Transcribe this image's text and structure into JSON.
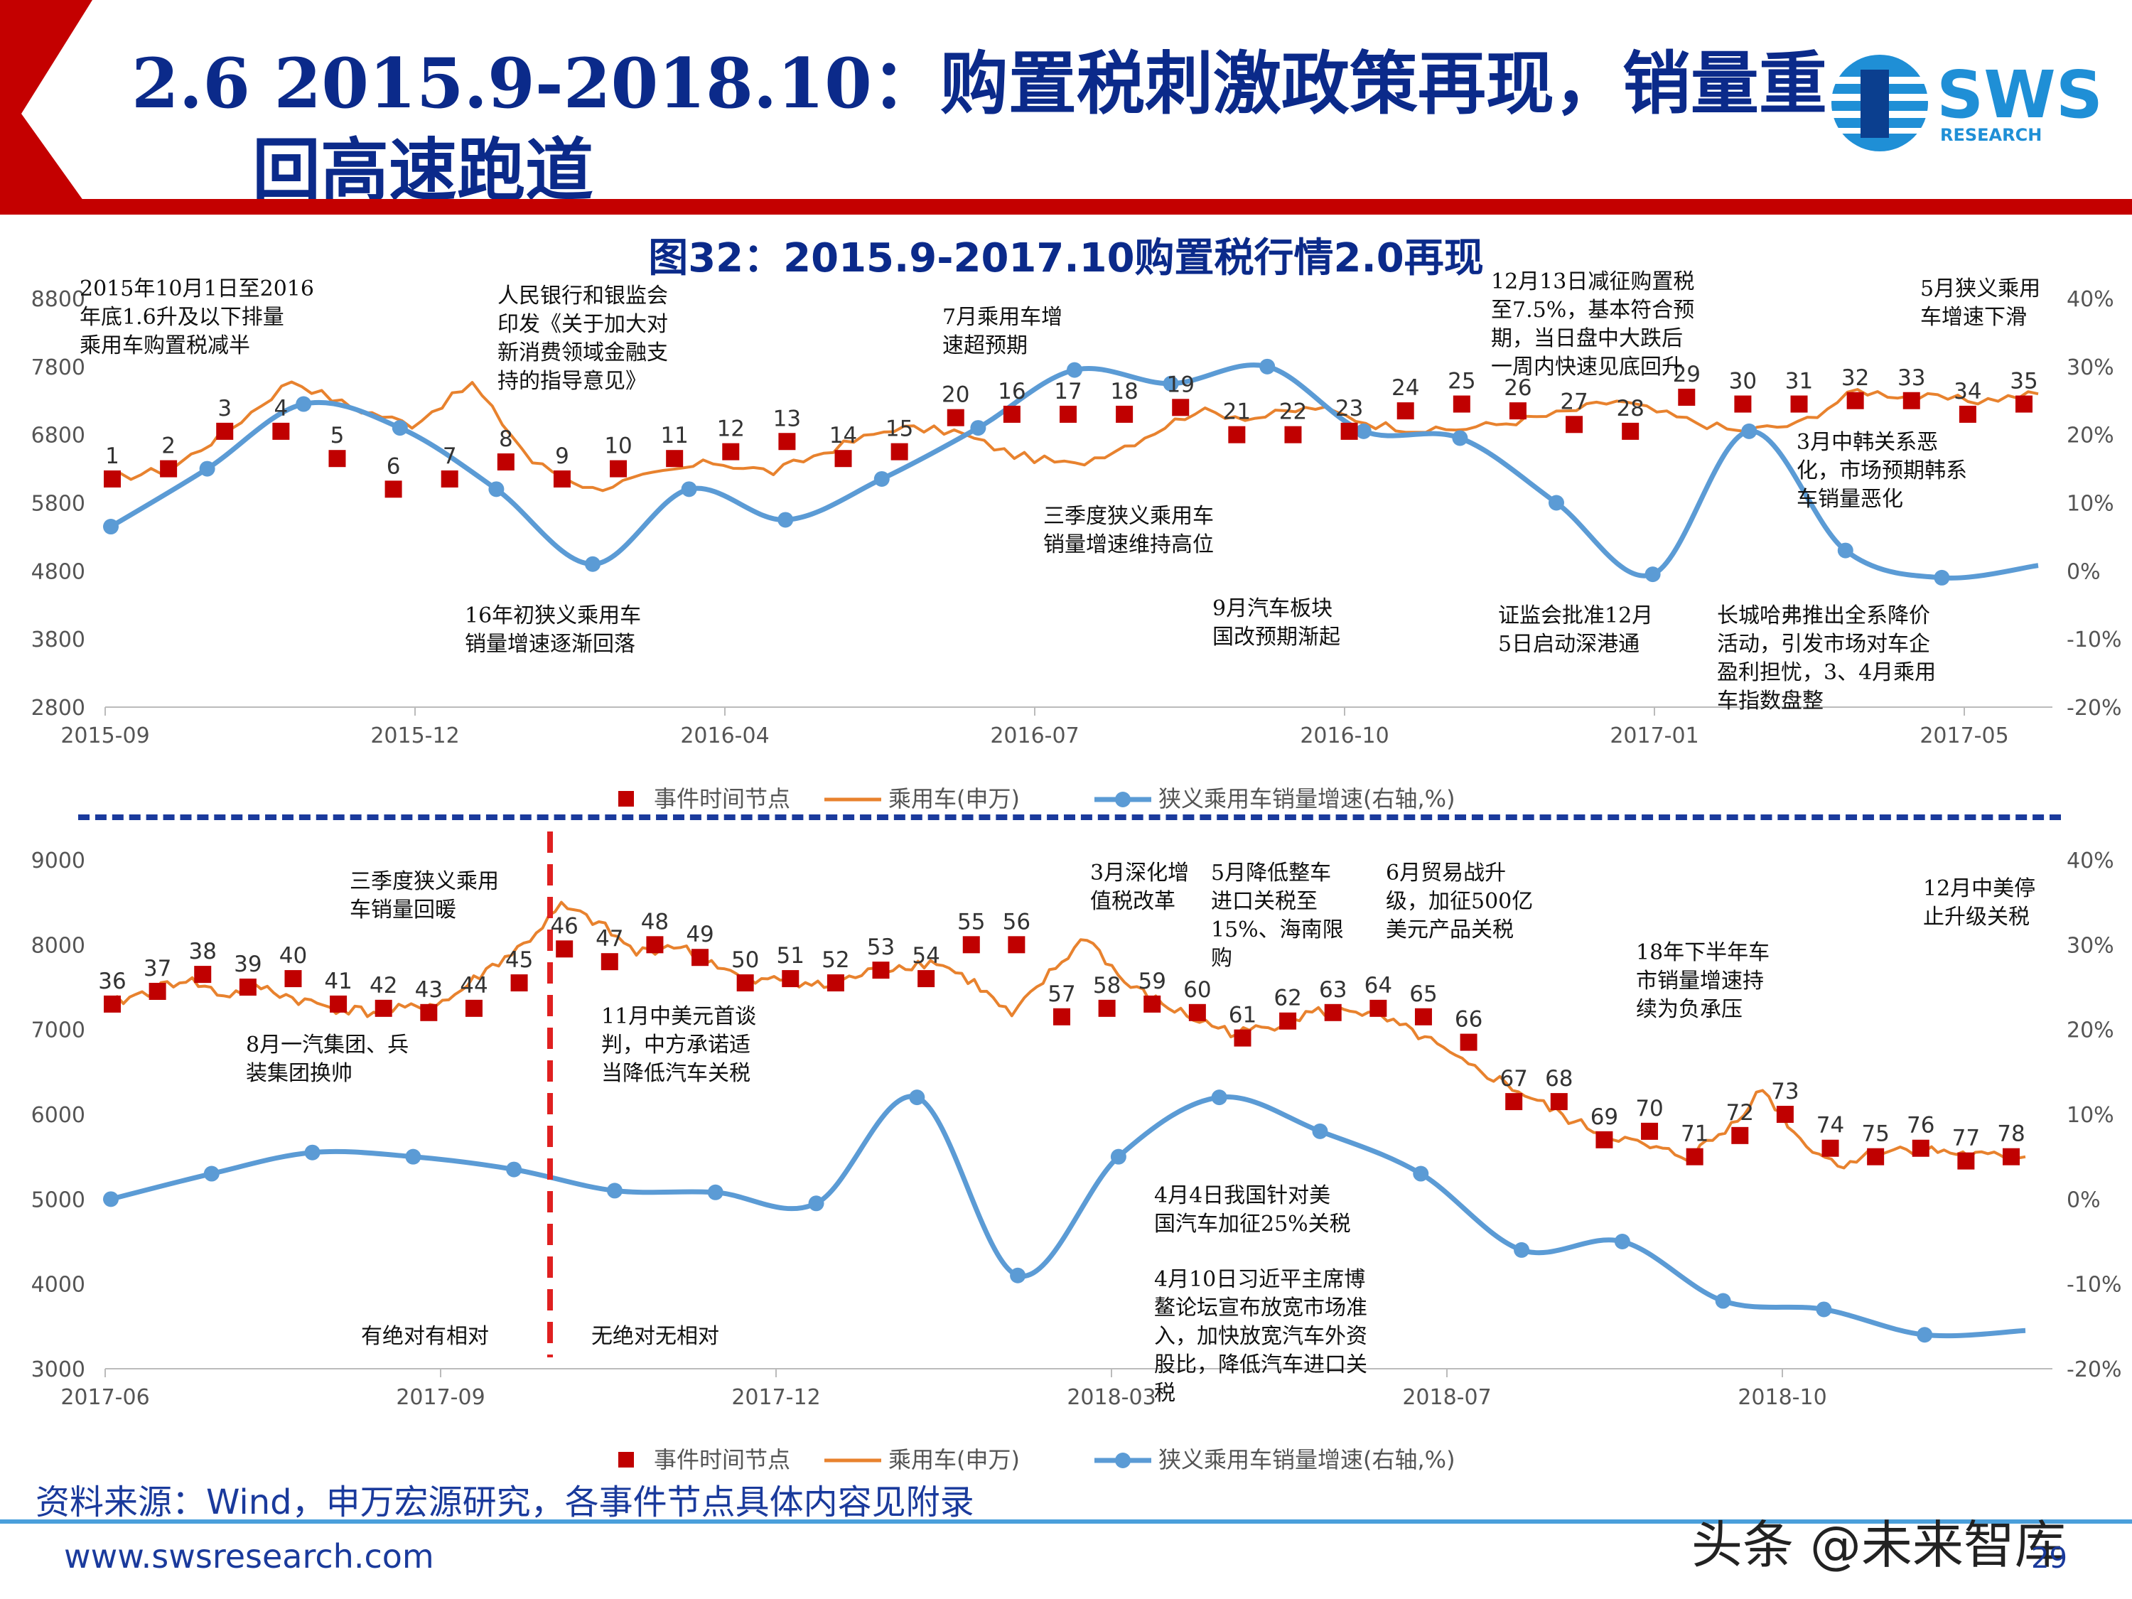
{
  "slide": {
    "title_line1": "2.6 2015.9-2018.10：购置税刺激政策再现，销量重",
    "title_line2": "回高速跑道",
    "figure_title": "图32：2015.9-2017.10购置税行情2.0再现",
    "logo_text": "SWS",
    "logo_sub": "RESEARCH",
    "source": "资料来源：Wind，申万宏源研究，各事件节点具体内容见附录",
    "website": "www.swsresearch.com",
    "watermark": "头条 @未来智库",
    "page": "29"
  },
  "colors": {
    "navy": "#0b2a8a",
    "red": "#c40000",
    "event": "#c00000",
    "orange": "#e8822e",
    "blue": "#5b9bd5"
  },
  "chart_data": [
    {
      "type": "line",
      "legend": [
        "事件时间节点",
        "乘用车(申万)",
        "狭义乘用车销量增速(右轴,%)"
      ],
      "x_ticks": [
        "2015-09",
        "2015-12",
        "2016-04",
        "2016-07",
        "2016-10",
        "2017-01",
        "2017-05"
      ],
      "y_left": {
        "range": [
          2800,
          8800
        ],
        "ticks": [
          "8800",
          "7800",
          "6800",
          "5800",
          "4800",
          "3800",
          "2800"
        ]
      },
      "y_right": {
        "range": [
          -20,
          40
        ],
        "ticks": [
          "40%",
          "30%",
          "20%",
          "10%",
          "0%",
          "-10%",
          "-20%"
        ]
      },
      "series": [
        {
          "name": "乘用车(申万)",
          "axis": "left",
          "values": [
            6150,
            6300,
            6900,
            7600,
            7200,
            6950,
            7550,
            6400,
            6000,
            6200,
            6400,
            6250,
            6600,
            6900,
            6850,
            6500,
            6350,
            6700,
            7150,
            7050,
            7200,
            6950,
            6850,
            6950,
            7100,
            7300,
            7050,
            6850,
            6950,
            7450,
            7350,
            7300,
            7400
          ]
        },
        {
          "name": "狭义乘用车销量增速(右轴,%)",
          "axis": "right",
          "values": [
            6.5,
            15,
            24.5,
            21,
            12,
            1,
            12,
            7.5,
            13.5,
            21,
            29.5,
            27.5,
            30,
            20.5,
            19.5,
            10,
            -0.5,
            20.5,
            3,
            -1,
            0.8
          ]
        }
      ],
      "events": [
        {
          "n": "1",
          "v": 6150
        },
        {
          "n": "2",
          "v": 6300
        },
        {
          "n": "3",
          "v": 6850
        },
        {
          "n": "4",
          "v": 6850
        },
        {
          "n": "5",
          "v": 6450
        },
        {
          "n": "6",
          "v": 6000
        },
        {
          "n": "7",
          "v": 6150
        },
        {
          "n": "8",
          "v": 6400
        },
        {
          "n": "9",
          "v": 6150
        },
        {
          "n": "10",
          "v": 6300
        },
        {
          "n": "11",
          "v": 6450
        },
        {
          "n": "12",
          "v": 6550
        },
        {
          "n": "13",
          "v": 6700
        },
        {
          "n": "14",
          "v": 6450
        },
        {
          "n": "15",
          "v": 6550
        },
        {
          "n": "20",
          "v": 7050
        },
        {
          "n": "16",
          "v": 7100
        },
        {
          "n": "17",
          "v": 7100
        },
        {
          "n": "18",
          "v": 7100
        },
        {
          "n": "19",
          "v": 7200
        },
        {
          "n": "21",
          "v": 6800
        },
        {
          "n": "22",
          "v": 6800
        },
        {
          "n": "23",
          "v": 6850
        },
        {
          "n": "24",
          "v": 7150
        },
        {
          "n": "25",
          "v": 7250
        },
        {
          "n": "26",
          "v": 7150
        },
        {
          "n": "27",
          "v": 6950
        },
        {
          "n": "28",
          "v": 6850
        },
        {
          "n": "29",
          "v": 7350
        },
        {
          "n": "30",
          "v": 7250
        },
        {
          "n": "31",
          "v": 7250
        },
        {
          "n": "32",
          "v": 7300
        },
        {
          "n": "33",
          "v": 7300
        },
        {
          "n": "34",
          "v": 7100
        },
        {
          "n": "35",
          "v": 7250
        }
      ],
      "annotations": [
        "2015年10月1日至2016\n年底1.6升及以下排量\n乘用车购置税减半",
        "人民银行和银监会\n印发《关于加大对\n新消费领域金融支\n持的指导意见》",
        "7月乘用车增\n速超预期",
        "12月13日减征购置税\n至7.5%，基本符合预\n期，当日盘中大跌后\n一周内快速见底回升",
        "5月狭义乘用\n车增速下滑",
        "3月中韩关系恶\n化，市场预期韩系\n车销量恶化",
        "三季度狭义乘用车\n销量增速维持高位",
        "16年初狭义乘用车\n销量增速逐渐回落",
        "9月汽车板块\n国改预期渐起",
        "证监会批准12月\n5日启动深港通",
        "长城哈弗推出全系降价\n活动，引发市场对车企\n盈利担忧，3、4月乘用\n车指数盘整"
      ]
    },
    {
      "type": "line",
      "legend": [
        "事件时间节点",
        "乘用车(申万)",
        "狭义乘用车销量增速(右轴,%)"
      ],
      "x_ticks": [
        "2017-06",
        "2017-09",
        "2017-12",
        "2018-03",
        "2018-07",
        "2018-10"
      ],
      "y_left": {
        "range": [
          3000,
          9000
        ],
        "ticks": [
          "9000",
          "8000",
          "7000",
          "6000",
          "5000",
          "4000",
          "3000"
        ]
      },
      "y_right": {
        "range": [
          -20,
          40
        ],
        "ticks": [
          "40%",
          "30%",
          "20%",
          "10%",
          "0%",
          "-10%",
          "-20%"
        ]
      },
      "series": [
        {
          "name": "乘用车(申万)",
          "axis": "left",
          "values": [
            7300,
            7450,
            7600,
            7400,
            7500,
            7350,
            7250,
            7200,
            7250,
            7350,
            7700,
            8000,
            8450,
            8250,
            7900,
            8000,
            7800,
            7550,
            7600,
            7500,
            7650,
            7750,
            7800,
            7550,
            7150,
            7650,
            8100,
            7550,
            7300,
            7100,
            6950,
            7050,
            7200,
            7250,
            7100,
            6900,
            6600,
            6400,
            6150,
            5900,
            5750,
            5600,
            5500,
            5800,
            6300,
            5700,
            5400,
            5550,
            5600,
            5550,
            5500,
            5500
          ]
        },
        {
          "name": "狭义乘用车销量增速(右轴,%)",
          "axis": "right",
          "values": [
            0,
            3,
            5.5,
            5,
            3.5,
            1,
            0.8,
            -0.5,
            12,
            -9,
            5,
            12,
            8,
            3,
            -6,
            -5,
            -12,
            -13,
            -16,
            -15.5
          ]
        }
      ],
      "events": [
        {
          "n": "36",
          "v": 7300
        },
        {
          "n": "37",
          "v": 7450
        },
        {
          "n": "38",
          "v": 7650
        },
        {
          "n": "39",
          "v": 7500
        },
        {
          "n": "40",
          "v": 7600
        },
        {
          "n": "41",
          "v": 7300
        },
        {
          "n": "42",
          "v": 7250
        },
        {
          "n": "43",
          "v": 7200
        },
        {
          "n": "44",
          "v": 7250
        },
        {
          "n": "45",
          "v": 7550
        },
        {
          "n": "46",
          "v": 7950
        },
        {
          "n": "47",
          "v": 7800
        },
        {
          "n": "48",
          "v": 8000
        },
        {
          "n": "49",
          "v": 7850
        },
        {
          "n": "50",
          "v": 7550
        },
        {
          "n": "51",
          "v": 7600
        },
        {
          "n": "52",
          "v": 7550
        },
        {
          "n": "53",
          "v": 7700
        },
        {
          "n": "54",
          "v": 7600
        },
        {
          "n": "55",
          "v": 8000
        },
        {
          "n": "56",
          "v": 8000
        },
        {
          "n": "57",
          "v": 7150
        },
        {
          "n": "58",
          "v": 7250
        },
        {
          "n": "59",
          "v": 7300
        },
        {
          "n": "60",
          "v": 7200
        },
        {
          "n": "61",
          "v": 6900
        },
        {
          "n": "62",
          "v": 7100
        },
        {
          "n": "63",
          "v": 7200
        },
        {
          "n": "64",
          "v": 7250
        },
        {
          "n": "65",
          "v": 7150
        },
        {
          "n": "66",
          "v": 6850
        },
        {
          "n": "67",
          "v": 6150
        },
        {
          "n": "68",
          "v": 6150
        },
        {
          "n": "69",
          "v": 5700
        },
        {
          "n": "70",
          "v": 5800
        },
        {
          "n": "71",
          "v": 5500
        },
        {
          "n": "72",
          "v": 5750
        },
        {
          "n": "73",
          "v": 6000
        },
        {
          "n": "74",
          "v": 5600
        },
        {
          "n": "75",
          "v": 5500
        },
        {
          "n": "76",
          "v": 5600
        },
        {
          "n": "77",
          "v": 5450
        },
        {
          "n": "78",
          "v": 5500
        }
      ],
      "annotations": [
        "三季度狭义乘用\n车销量回暖",
        "3月深化增\n值税改革",
        "5月降低整车\n进口关税至\n15%、海南限\n购",
        "6月贸易战升\n级，加征500亿\n美元产品关税",
        "12月中美停\n止升级关税",
        "18年下半年车\n市销量增速持\n续为负承压",
        "8月一汽集团、兵\n装集团换帅",
        "11月中美元首谈\n判，中方承诺适\n当降低汽车关税",
        "4月4日我国针对美\n国汽车加征25%关税",
        "4月10日习近平主席博\n鳌论坛宣布放宽市场准\n入，加快放宽汽车外资\n股比，降低汽车进口关\n税"
      ],
      "regime_labels": [
        "有绝对有相对",
        "无绝对无相对"
      ]
    }
  ]
}
